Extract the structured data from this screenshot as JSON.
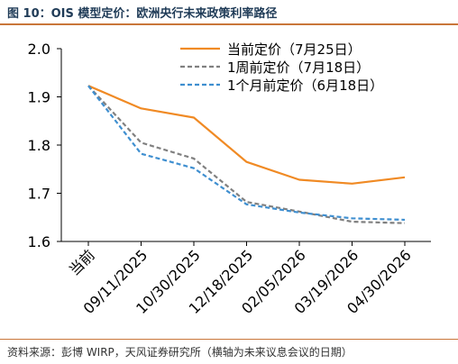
{
  "title": "图 10：OIS 模型定价：欧洲央行未来政策利率路径",
  "source": "资料来源：彭博 WIRP，天风证券研究所（横轴为未来议息会议的日期）",
  "colors": {
    "accent": "#c9763a",
    "orange": "#f08a24",
    "gray": "#808080",
    "blue": "#3f8fd0"
  },
  "chart_data": {
    "type": "line",
    "categories": [
      "当前",
      "09/11/2025",
      "10/30/2025",
      "12/18/2025",
      "02/05/2026",
      "03/19/2026",
      "04/30/2026"
    ],
    "ylim": [
      1.6,
      2.0
    ],
    "yticks": [
      "1.6",
      "1.7",
      "1.8",
      "1.9",
      "2.0"
    ],
    "xlabel": "",
    "ylabel": "",
    "legend_position": "top-right",
    "series": [
      {
        "name": "当前定价（7月25日）",
        "values": [
          1.923,
          1.876,
          1.857,
          1.765,
          1.728,
          1.72,
          1.733
        ],
        "color": "#f08a24",
        "style": "solid"
      },
      {
        "name": "1周前定价（7月18日）",
        "values": [
          1.923,
          1.805,
          1.772,
          1.682,
          1.662,
          1.641,
          1.638
        ],
        "color": "#808080",
        "style": "dashed"
      },
      {
        "name": "1个月前定价（6月18日）",
        "values": [
          1.923,
          1.782,
          1.752,
          1.677,
          1.66,
          1.648,
          1.645
        ],
        "color": "#3f8fd0",
        "style": "dashed"
      }
    ]
  }
}
